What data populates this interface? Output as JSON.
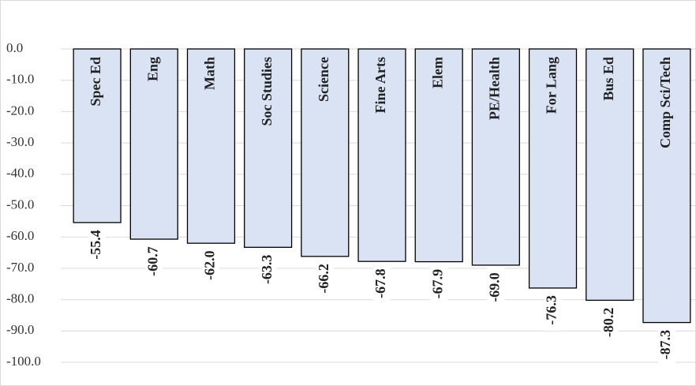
{
  "chart_data": {
    "type": "bar",
    "categories": [
      "Spec Ed",
      "Eng",
      "Math",
      "Soc Studies",
      "Science",
      "Fine Arts",
      "Elem",
      "PE/Health",
      "For Lang",
      "Bus Ed",
      "Comp Sci/Tech"
    ],
    "values": [
      -55.4,
      -60.7,
      -62.0,
      -63.3,
      -66.2,
      -67.8,
      -67.9,
      -69.0,
      -76.3,
      -80.2,
      -87.3
    ],
    "value_labels": [
      "-55.4",
      "-60.7",
      "-62.0",
      "-63.3",
      "-66.2",
      "-67.8",
      "-67.9",
      "-69.0",
      "-76.3",
      "-80.2",
      "-87.3"
    ],
    "color": "#dae3f3",
    "ylim": [
      -100,
      0
    ],
    "yticks": [
      {
        "value": 0,
        "label": "0.0"
      },
      {
        "value": -10,
        "label": "-10.0"
      },
      {
        "value": -20,
        "label": "-20.0"
      },
      {
        "value": -30,
        "label": "-30.0"
      },
      {
        "value": -40,
        "label": "-40.0"
      },
      {
        "value": -50,
        "label": "-50.0"
      },
      {
        "value": -60,
        "label": "-60.0"
      },
      {
        "value": -70,
        "label": "-70.0"
      },
      {
        "value": -80,
        "label": "-80.0"
      },
      {
        "value": -90,
        "label": "-90.0"
      },
      {
        "value": -100,
        "label": "-100.0"
      }
    ],
    "grid": true
  }
}
